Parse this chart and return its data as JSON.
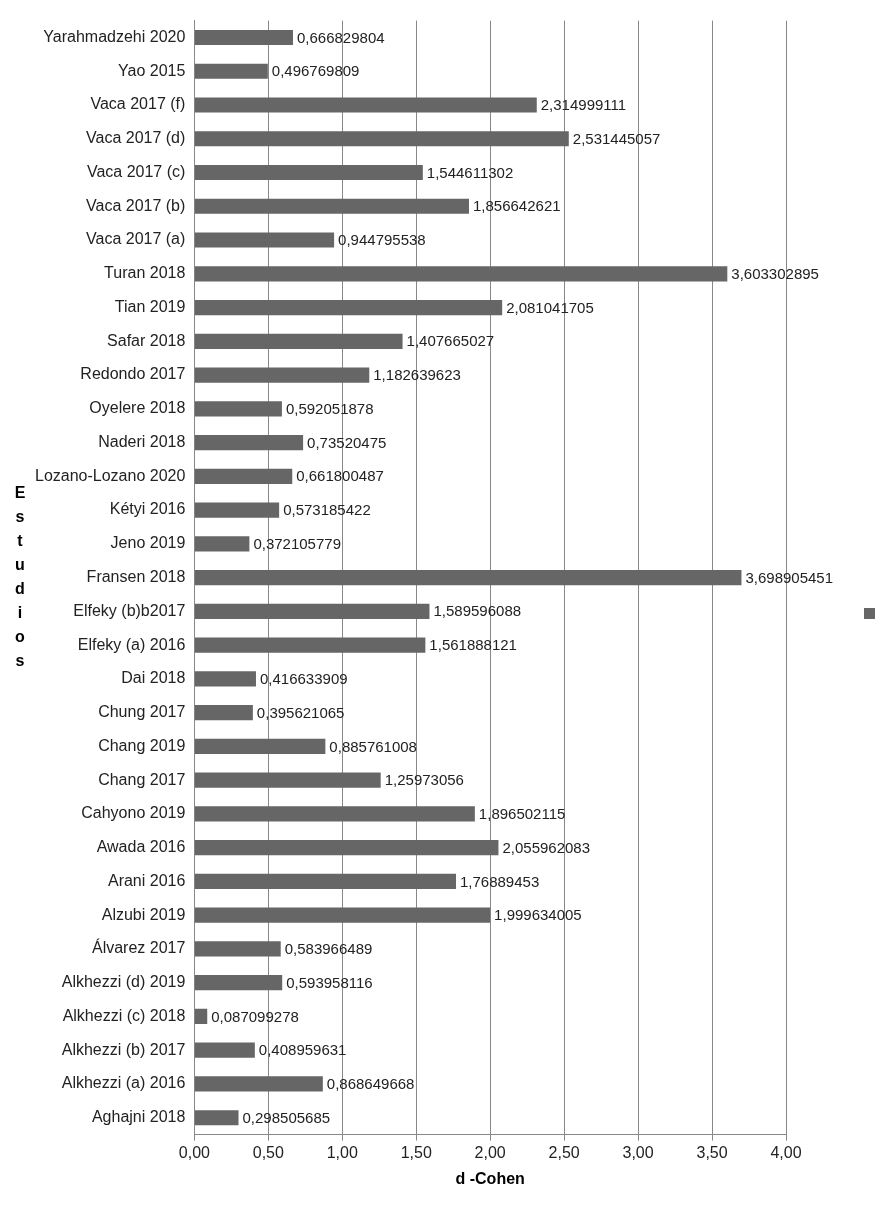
{
  "chart_data": {
    "type": "bar",
    "orientation": "horizontal",
    "xlabel": "d -Cohen",
    "ylabel": "Estudios",
    "categories": [
      "Yarahmadzehi 2020",
      "Yao 2015",
      "Vaca 2017 (f)",
      "Vaca 2017 (d)",
      "Vaca 2017 (c)",
      "Vaca 2017 (b)",
      "Vaca 2017 (a)",
      "Turan 2018",
      "Tian 2019",
      "Safar 2018",
      "Redondo 2017",
      "Oyelere 2018",
      "Naderi 2018",
      "Lozano-Lozano 2020",
      "Kétyi 2016",
      "Jeno 2019",
      "Fransen 2018",
      "Elfeky (b)b2017",
      "Elfeky (a) 2016",
      "Dai 2018",
      "Chung 2017",
      "Chang 2019",
      "Chang 2017",
      "Cahyono 2019",
      "Awada 2016",
      "Arani 2016",
      "Alzubi 2019",
      "Álvarez 2017",
      "Alkhezzi (d) 2019",
      "Alkhezzi (c) 2018",
      "Alkhezzi (b) 2017",
      "Alkhezzi (a) 2016",
      "Aghajni 2018"
    ],
    "values": [
      0.666829804,
      0.496769809,
      2.314999111,
      2.531445057,
      1.544611302,
      1.856642621,
      0.944795538,
      3.603302895,
      2.081041705,
      1.407665027,
      1.182639623,
      0.592051878,
      0.73520475,
      0.661800487,
      0.573185422,
      0.372105779,
      3.698905451,
      1.589596088,
      1.561888121,
      0.416633909,
      0.395621065,
      0.885761008,
      1.25973056,
      1.896502115,
      2.055962083,
      1.76889453,
      1.999634005,
      0.583966489,
      0.593958116,
      0.087099278,
      0.408959631,
      0.868649668,
      0.298505685
    ],
    "value_labels": [
      "0,666829804",
      "0,496769809",
      "2,314999111",
      "2,531445057",
      "1,544611302",
      "1,856642621",
      "0,944795538",
      "3,603302895",
      "2,081041705",
      "1,407665027",
      "1,182639623",
      "0,592051878",
      "0,73520475",
      "0,661800487",
      "0,573185422",
      "0,372105779",
      "3,698905451",
      "1,589596088",
      "1,561888121",
      "0,416633909",
      "0,395621065",
      "0,885761008",
      "1,25973056",
      "1,896502115",
      "2,055962083",
      "1,76889453",
      "1,999634005",
      "0,583966489",
      "0,593958116",
      "0,087099278",
      "0,408959631",
      "0,868649668",
      "0,298505685"
    ],
    "color": "#666666",
    "xlim": [
      0,
      4
    ],
    "xticks": [
      {
        "value": 0,
        "label": "0,00"
      },
      {
        "value": 0.5,
        "label": "0,50"
      },
      {
        "value": 1,
        "label": "1,00"
      },
      {
        "value": 1.5,
        "label": "1,50"
      },
      {
        "value": 2,
        "label": "2,00"
      },
      {
        "value": 2.5,
        "label": "2,50"
      },
      {
        "value": 3,
        "label": "3,00"
      },
      {
        "value": 3.5,
        "label": "3,50"
      },
      {
        "value": 4,
        "label": "4,00"
      }
    ],
    "grid": "x"
  }
}
